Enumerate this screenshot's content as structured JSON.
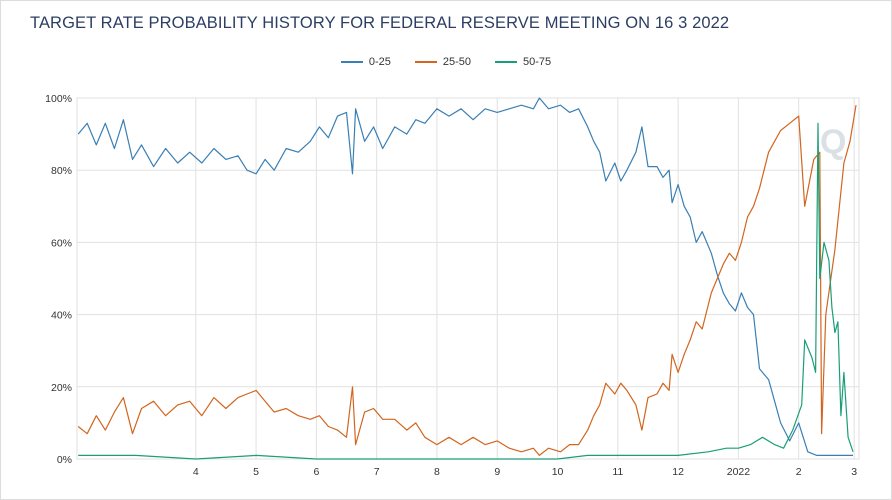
{
  "chart_data": {
    "type": "line",
    "title": "TARGET RATE PROBABILITY HISTORY FOR FEDERAL RESERVE MEETING ON 16 3 2022",
    "xlabel": "",
    "ylabel": "",
    "ylim": [
      0,
      100
    ],
    "yticks": [
      "0%",
      "20%",
      "40%",
      "60%",
      "80%",
      "100%"
    ],
    "xticks": [
      {
        "label": "4",
        "pos": 1.0
      },
      {
        "label": "5",
        "pos": 2.0
      },
      {
        "label": "6",
        "pos": 3.0
      },
      {
        "label": "7",
        "pos": 4.0
      },
      {
        "label": "8",
        "pos": 5.0
      },
      {
        "label": "9",
        "pos": 6.0
      },
      {
        "label": "10",
        "pos": 7.0
      },
      {
        "label": "11",
        "pos": 8.0
      },
      {
        "label": "12",
        "pos": 9.0
      },
      {
        "label": "2022",
        "pos": 10.0
      },
      {
        "label": "2",
        "pos": 11.0
      },
      {
        "label": "3",
        "pos": 11.92
      }
    ],
    "xlim": [
      -0.97,
      12.0
    ],
    "grid": true,
    "legend_position": "top-center",
    "series": [
      {
        "name": "0-25",
        "color": "#3a7fb4",
        "points": [
          [
            -0.95,
            90
          ],
          [
            -0.8,
            93
          ],
          [
            -0.65,
            87
          ],
          [
            -0.5,
            93
          ],
          [
            -0.35,
            86
          ],
          [
            -0.2,
            94
          ],
          [
            -0.05,
            83
          ],
          [
            0.1,
            87
          ],
          [
            0.3,
            81
          ],
          [
            0.5,
            86
          ],
          [
            0.7,
            82
          ],
          [
            0.9,
            85
          ],
          [
            1.1,
            82
          ],
          [
            1.3,
            86
          ],
          [
            1.5,
            83
          ],
          [
            1.7,
            84
          ],
          [
            1.85,
            80
          ],
          [
            2.0,
            79
          ],
          [
            2.15,
            83
          ],
          [
            2.3,
            80
          ],
          [
            2.5,
            86
          ],
          [
            2.7,
            85
          ],
          [
            2.9,
            88
          ],
          [
            3.05,
            92
          ],
          [
            3.2,
            89
          ],
          [
            3.35,
            95
          ],
          [
            3.5,
            96
          ],
          [
            3.6,
            79
          ],
          [
            3.65,
            97
          ],
          [
            3.8,
            88
          ],
          [
            3.95,
            92
          ],
          [
            4.1,
            86
          ],
          [
            4.3,
            92
          ],
          [
            4.5,
            90
          ],
          [
            4.65,
            94
          ],
          [
            4.8,
            93
          ],
          [
            5.0,
            97
          ],
          [
            5.2,
            95
          ],
          [
            5.4,
            97
          ],
          [
            5.6,
            94
          ],
          [
            5.8,
            97
          ],
          [
            6.0,
            96
          ],
          [
            6.2,
            97
          ],
          [
            6.4,
            98
          ],
          [
            6.6,
            97
          ],
          [
            6.7,
            100
          ],
          [
            6.85,
            97
          ],
          [
            7.05,
            98
          ],
          [
            7.2,
            96
          ],
          [
            7.35,
            97
          ],
          [
            7.5,
            92
          ],
          [
            7.6,
            88
          ],
          [
            7.7,
            85
          ],
          [
            7.8,
            77
          ],
          [
            7.95,
            82
          ],
          [
            8.05,
            77
          ],
          [
            8.15,
            80
          ],
          [
            8.3,
            85
          ],
          [
            8.4,
            92
          ],
          [
            8.5,
            81
          ],
          [
            8.65,
            81
          ],
          [
            8.75,
            78
          ],
          [
            8.85,
            80
          ],
          [
            8.9,
            71
          ],
          [
            9.0,
            76
          ],
          [
            9.1,
            70
          ],
          [
            9.2,
            67
          ],
          [
            9.3,
            60
          ],
          [
            9.4,
            63
          ],
          [
            9.55,
            57
          ],
          [
            9.65,
            51
          ],
          [
            9.75,
            46
          ],
          [
            9.85,
            43
          ],
          [
            9.95,
            41
          ],
          [
            10.05,
            46
          ],
          [
            10.15,
            42
          ],
          [
            10.25,
            40
          ],
          [
            10.35,
            25
          ],
          [
            10.5,
            22
          ],
          [
            10.6,
            16
          ],
          [
            10.7,
            10
          ],
          [
            10.85,
            5
          ],
          [
            11.0,
            10
          ],
          [
            11.15,
            2
          ],
          [
            11.3,
            1
          ],
          [
            11.5,
            1
          ],
          [
            11.7,
            1
          ],
          [
            11.9,
            1
          ]
        ]
      },
      {
        "name": "25-50",
        "color": "#d2651f",
        "points": [
          [
            -0.95,
            9
          ],
          [
            -0.8,
            7
          ],
          [
            -0.65,
            12
          ],
          [
            -0.5,
            8
          ],
          [
            -0.35,
            13
          ],
          [
            -0.2,
            17
          ],
          [
            -0.05,
            7
          ],
          [
            0.1,
            14
          ],
          [
            0.3,
            16
          ],
          [
            0.5,
            12
          ],
          [
            0.7,
            15
          ],
          [
            0.9,
            16
          ],
          [
            1.1,
            12
          ],
          [
            1.3,
            17
          ],
          [
            1.5,
            14
          ],
          [
            1.7,
            17
          ],
          [
            1.85,
            18
          ],
          [
            2.0,
            19
          ],
          [
            2.15,
            16
          ],
          [
            2.3,
            13
          ],
          [
            2.5,
            14
          ],
          [
            2.7,
            12
          ],
          [
            2.9,
            11
          ],
          [
            3.05,
            12
          ],
          [
            3.2,
            9
          ],
          [
            3.35,
            8
          ],
          [
            3.5,
            6
          ],
          [
            3.6,
            20
          ],
          [
            3.65,
            4
          ],
          [
            3.8,
            13
          ],
          [
            3.95,
            14
          ],
          [
            4.1,
            11
          ],
          [
            4.3,
            11
          ],
          [
            4.5,
            8
          ],
          [
            4.65,
            10
          ],
          [
            4.8,
            6
          ],
          [
            5.0,
            4
          ],
          [
            5.2,
            6
          ],
          [
            5.4,
            4
          ],
          [
            5.6,
            6
          ],
          [
            5.8,
            4
          ],
          [
            6.0,
            5
          ],
          [
            6.2,
            3
          ],
          [
            6.4,
            2
          ],
          [
            6.6,
            3
          ],
          [
            6.7,
            1
          ],
          [
            6.85,
            3
          ],
          [
            7.05,
            2
          ],
          [
            7.2,
            4
          ],
          [
            7.35,
            4
          ],
          [
            7.5,
            8
          ],
          [
            7.6,
            12
          ],
          [
            7.7,
            15
          ],
          [
            7.8,
            21
          ],
          [
            7.95,
            18
          ],
          [
            8.05,
            21
          ],
          [
            8.15,
            19
          ],
          [
            8.3,
            15
          ],
          [
            8.4,
            8
          ],
          [
            8.5,
            17
          ],
          [
            8.65,
            18
          ],
          [
            8.75,
            21
          ],
          [
            8.85,
            19
          ],
          [
            8.9,
            29
          ],
          [
            9.0,
            24
          ],
          [
            9.1,
            29
          ],
          [
            9.2,
            33
          ],
          [
            9.3,
            38
          ],
          [
            9.4,
            36
          ],
          [
            9.55,
            46
          ],
          [
            9.65,
            50
          ],
          [
            9.75,
            54
          ],
          [
            9.85,
            57
          ],
          [
            9.95,
            55
          ],
          [
            10.05,
            60
          ],
          [
            10.15,
            67
          ],
          [
            10.25,
            70
          ],
          [
            10.35,
            75
          ],
          [
            10.5,
            85
          ],
          [
            10.6,
            88
          ],
          [
            10.7,
            91
          ],
          [
            10.85,
            93
          ],
          [
            11.0,
            95
          ],
          [
            11.1,
            70
          ],
          [
            11.25,
            83
          ],
          [
            11.35,
            85
          ],
          [
            11.38,
            7
          ],
          [
            11.45,
            40
          ],
          [
            11.6,
            58
          ],
          [
            11.75,
            82
          ],
          [
            11.85,
            88
          ],
          [
            11.95,
            98
          ]
        ]
      },
      {
        "name": "50-75",
        "color": "#1a9e78",
        "points": [
          [
            -0.95,
            1
          ],
          [
            0.0,
            1
          ],
          [
            1.0,
            0
          ],
          [
            2.0,
            1
          ],
          [
            3.0,
            0
          ],
          [
            4.0,
            0
          ],
          [
            5.0,
            0
          ],
          [
            6.0,
            0
          ],
          [
            7.0,
            0
          ],
          [
            7.5,
            1
          ],
          [
            8.0,
            1
          ],
          [
            8.5,
            1
          ],
          [
            9.0,
            1
          ],
          [
            9.5,
            2
          ],
          [
            9.8,
            3
          ],
          [
            10.0,
            3
          ],
          [
            10.2,
            4
          ],
          [
            10.4,
            6
          ],
          [
            10.6,
            4
          ],
          [
            10.75,
            3
          ],
          [
            10.9,
            8
          ],
          [
            11.05,
            15
          ],
          [
            11.1,
            33
          ],
          [
            11.22,
            28
          ],
          [
            11.28,
            24
          ],
          [
            11.32,
            93
          ],
          [
            11.35,
            50
          ],
          [
            11.42,
            60
          ],
          [
            11.5,
            55
          ],
          [
            11.55,
            42
          ],
          [
            11.6,
            35
          ],
          [
            11.65,
            38
          ],
          [
            11.7,
            12
          ],
          [
            11.75,
            24
          ],
          [
            11.82,
            6
          ],
          [
            11.9,
            2
          ]
        ]
      }
    ]
  }
}
